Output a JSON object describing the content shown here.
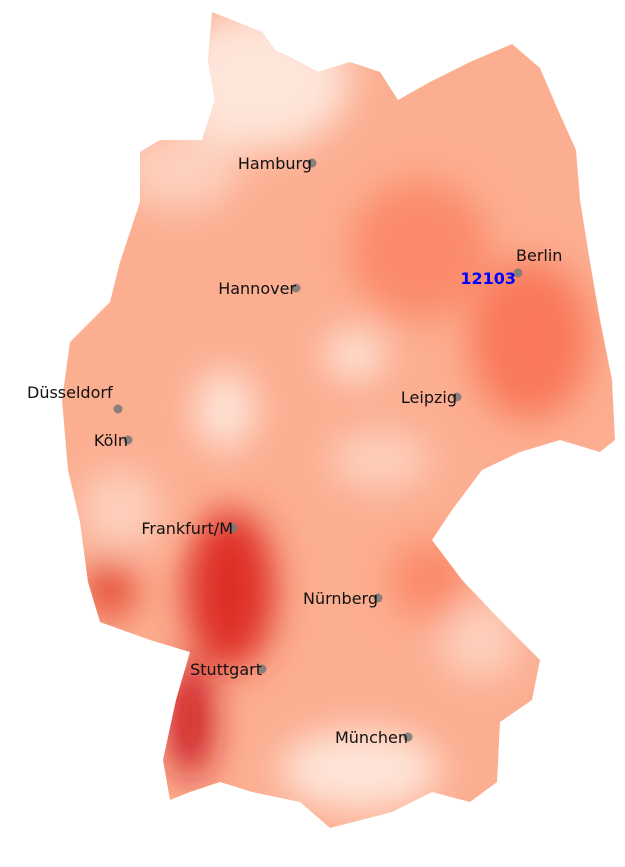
{
  "map": {
    "colors": {
      "light": "#fee5d9",
      "mid": "#fcae91",
      "strong": "#fb6a4a",
      "dark": "#de2d26",
      "darkest": "#a50f15",
      "marker": "#777777",
      "highlight": "#0000ff"
    },
    "cities": [
      {
        "name": "Hamburg",
        "anchor": "end"
      },
      {
        "name": "Berlin",
        "anchor": "start-above"
      },
      {
        "name": "Hannover",
        "anchor": "end"
      },
      {
        "name": "Düsseldorf",
        "anchor": "start-above"
      },
      {
        "name": "Köln",
        "anchor": "end"
      },
      {
        "name": "Leipzig",
        "anchor": "end"
      },
      {
        "name": "Frankfurt/M",
        "anchor": "end"
      },
      {
        "name": "Nürnberg",
        "anchor": "end"
      },
      {
        "name": "Stuttgart",
        "anchor": "end"
      },
      {
        "name": "München",
        "anchor": "end"
      }
    ],
    "highlight": {
      "label": "12103",
      "near": "Berlin"
    }
  }
}
